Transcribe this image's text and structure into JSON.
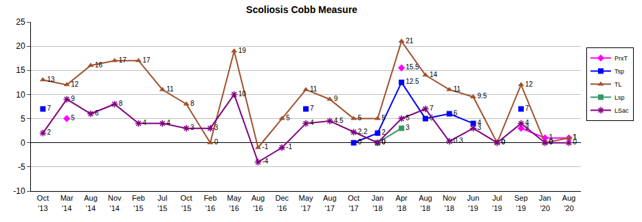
{
  "chart_data": {
    "type": "line",
    "title": "Scoliosis Cobb Measure",
    "categories": [
      "Oct '13",
      "Mar '14",
      "Aug '14",
      "Nov '14",
      "Feb '15",
      "Jul '15",
      "Oct '15",
      "Feb '16",
      "May '16",
      "Aug '16",
      "Dec '16",
      "May '17",
      "Aug '17",
      "Oct '17",
      "Jan '18",
      "Apr '18",
      "Aug '18",
      "Nov '18",
      "Jun '19",
      "Jul '19",
      "Sep '19",
      "Jan '20",
      "Aug '20"
    ],
    "series": [
      {
        "name": "PrxT",
        "color": "#ff00ff",
        "marker": "diamond",
        "values": [
          null,
          5,
          null,
          null,
          null,
          null,
          null,
          null,
          null,
          null,
          null,
          null,
          null,
          null,
          null,
          15.5,
          null,
          null,
          null,
          null,
          3,
          1,
          1
        ]
      },
      {
        "name": "Tsp",
        "color": "#0000ff",
        "marker": "square",
        "values": [
          7,
          null,
          null,
          null,
          null,
          null,
          null,
          null,
          null,
          null,
          null,
          7,
          null,
          0,
          2,
          12.5,
          5,
          6,
          4,
          null,
          7,
          null,
          null
        ]
      },
      {
        "name": "TL",
        "color": "#a0522d",
        "marker": "triangle",
        "values": [
          13,
          12,
          16,
          17,
          17,
          11,
          8,
          0,
          19,
          -1,
          5,
          11,
          9,
          5,
          5,
          21,
          14,
          11,
          9.5,
          0,
          12,
          0,
          1
        ]
      },
      {
        "name": "Lsp",
        "color": "#339966",
        "marker": "square",
        "values": [
          null,
          null,
          null,
          null,
          null,
          null,
          null,
          null,
          null,
          null,
          null,
          null,
          null,
          null,
          0,
          3,
          null,
          null,
          null,
          null,
          null,
          null,
          null
        ]
      },
      {
        "name": "LSac",
        "color": "#800080",
        "marker": "asterisk",
        "values": [
          2,
          9,
          6,
          8,
          4,
          4,
          3,
          3,
          10,
          -4,
          -1,
          4,
          4.5,
          2.2,
          0,
          5,
          7,
          0.3,
          3,
          0,
          4,
          0,
          0
        ]
      }
    ],
    "ylim": [
      -10,
      25
    ],
    "yticks": [
      -10,
      -5,
      0,
      5,
      10,
      15,
      20,
      25
    ],
    "grid": true,
    "legend": "right",
    "data_labels": true
  }
}
